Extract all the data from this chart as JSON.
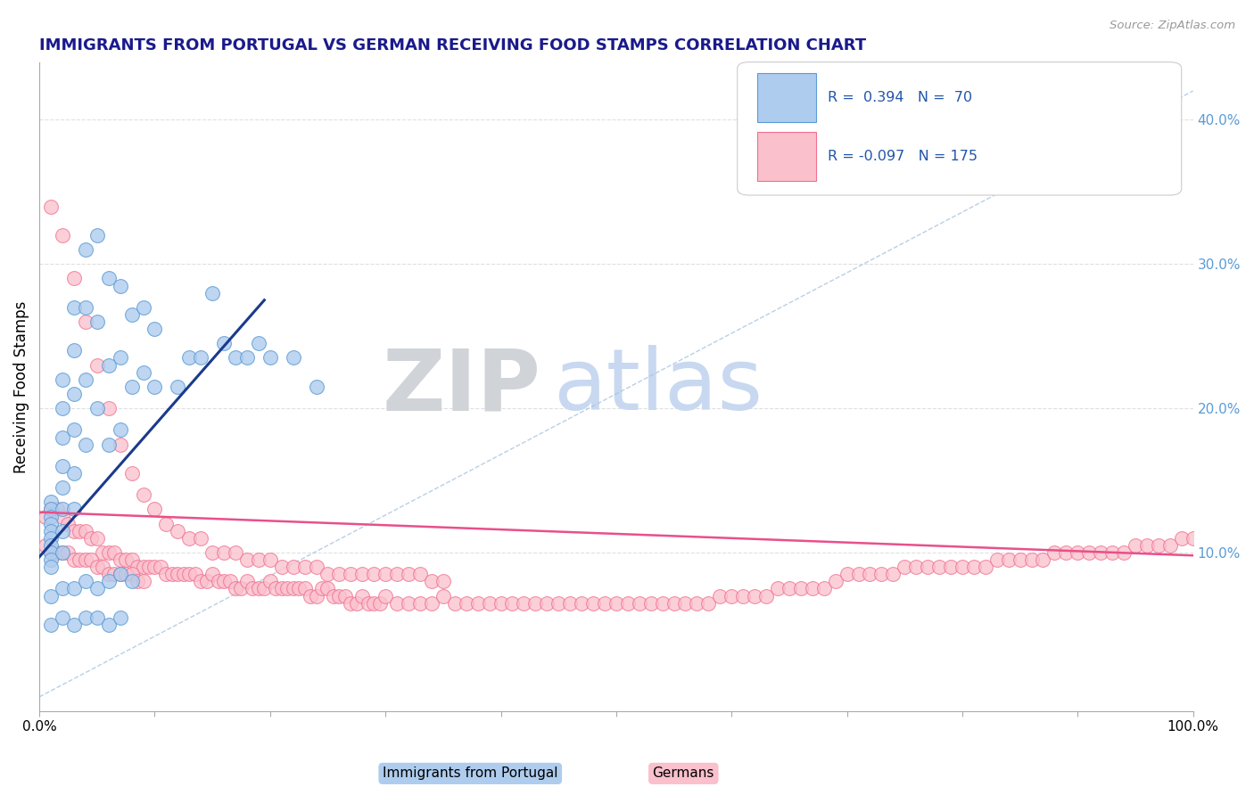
{
  "title": "IMMIGRANTS FROM PORTUGAL VS GERMAN RECEIVING FOOD STAMPS CORRELATION CHART",
  "source": "Source: ZipAtlas.com",
  "ylabel": "Receiving Food Stamps",
  "ylabel_right_ticks": [
    "10.0%",
    "20.0%",
    "30.0%",
    "40.0%"
  ],
  "ylabel_right_vals": [
    0.1,
    0.2,
    0.3,
    0.4
  ],
  "blue_r": "R =",
  "blue_r_val": "0.394",
  "blue_n": "N =",
  "blue_n_val": "70",
  "pink_r": "R =",
  "pink_r_val": "-0.097",
  "pink_n": "N =",
  "pink_n_val": "175",
  "blue_scatter_x": [
    0.01,
    0.01,
    0.01,
    0.01,
    0.01,
    0.01,
    0.01,
    0.01,
    0.01,
    0.01,
    0.02,
    0.02,
    0.02,
    0.02,
    0.02,
    0.02,
    0.02,
    0.02,
    0.03,
    0.03,
    0.03,
    0.03,
    0.03,
    0.03,
    0.04,
    0.04,
    0.04,
    0.04,
    0.05,
    0.05,
    0.05,
    0.06,
    0.06,
    0.06,
    0.07,
    0.07,
    0.07,
    0.08,
    0.08,
    0.09,
    0.09,
    0.1,
    0.1,
    0.12,
    0.13,
    0.14,
    0.15,
    0.16,
    0.17,
    0.18,
    0.19,
    0.2,
    0.22,
    0.24,
    0.01,
    0.02,
    0.03,
    0.04,
    0.05,
    0.06,
    0.07,
    0.08,
    0.01,
    0.02,
    0.03,
    0.04,
    0.05,
    0.06,
    0.07
  ],
  "blue_scatter_y": [
    0.135,
    0.13,
    0.125,
    0.12,
    0.115,
    0.11,
    0.105,
    0.1,
    0.095,
    0.09,
    0.22,
    0.2,
    0.18,
    0.16,
    0.145,
    0.13,
    0.115,
    0.1,
    0.27,
    0.24,
    0.21,
    0.185,
    0.155,
    0.13,
    0.31,
    0.27,
    0.22,
    0.175,
    0.32,
    0.26,
    0.2,
    0.29,
    0.23,
    0.175,
    0.285,
    0.235,
    0.185,
    0.265,
    0.215,
    0.27,
    0.225,
    0.255,
    0.215,
    0.215,
    0.235,
    0.235,
    0.28,
    0.245,
    0.235,
    0.235,
    0.245,
    0.235,
    0.235,
    0.215,
    0.07,
    0.075,
    0.075,
    0.08,
    0.075,
    0.08,
    0.085,
    0.08,
    0.05,
    0.055,
    0.05,
    0.055,
    0.055,
    0.05,
    0.055
  ],
  "pink_scatter_x": [
    0.005,
    0.01,
    0.015,
    0.02,
    0.025,
    0.03,
    0.035,
    0.04,
    0.045,
    0.05,
    0.055,
    0.06,
    0.065,
    0.07,
    0.075,
    0.08,
    0.085,
    0.09,
    0.095,
    0.1,
    0.105,
    0.11,
    0.115,
    0.12,
    0.125,
    0.13,
    0.135,
    0.14,
    0.145,
    0.15,
    0.155,
    0.16,
    0.165,
    0.17,
    0.175,
    0.18,
    0.185,
    0.19,
    0.195,
    0.2,
    0.205,
    0.21,
    0.215,
    0.22,
    0.225,
    0.23,
    0.235,
    0.24,
    0.245,
    0.25,
    0.255,
    0.26,
    0.265,
    0.27,
    0.275,
    0.28,
    0.285,
    0.29,
    0.295,
    0.3,
    0.31,
    0.32,
    0.33,
    0.34,
    0.35,
    0.36,
    0.37,
    0.38,
    0.39,
    0.4,
    0.41,
    0.42,
    0.43,
    0.44,
    0.45,
    0.46,
    0.47,
    0.48,
    0.49,
    0.5,
    0.51,
    0.52,
    0.53,
    0.54,
    0.55,
    0.56,
    0.57,
    0.58,
    0.59,
    0.6,
    0.61,
    0.62,
    0.63,
    0.64,
    0.65,
    0.66,
    0.67,
    0.68,
    0.69,
    0.7,
    0.71,
    0.72,
    0.73,
    0.74,
    0.75,
    0.76,
    0.77,
    0.78,
    0.79,
    0.8,
    0.81,
    0.82,
    0.83,
    0.84,
    0.85,
    0.86,
    0.87,
    0.88,
    0.89,
    0.9,
    0.91,
    0.92,
    0.93,
    0.94,
    0.95,
    0.96,
    0.97,
    0.98,
    0.99,
    1.0,
    0.01,
    0.02,
    0.03,
    0.04,
    0.05,
    0.06,
    0.07,
    0.08,
    0.09,
    0.1,
    0.11,
    0.12,
    0.13,
    0.14,
    0.15,
    0.16,
    0.17,
    0.18,
    0.19,
    0.2,
    0.21,
    0.22,
    0.23,
    0.24,
    0.25,
    0.26,
    0.27,
    0.28,
    0.29,
    0.3,
    0.31,
    0.32,
    0.33,
    0.34,
    0.35,
    0.005,
    0.01,
    0.015,
    0.02,
    0.025,
    0.03,
    0.035,
    0.04,
    0.045,
    0.05,
    0.055,
    0.06,
    0.065,
    0.07,
    0.075,
    0.08,
    0.085,
    0.09
  ],
  "pink_scatter_y": [
    0.125,
    0.13,
    0.13,
    0.125,
    0.12,
    0.115,
    0.115,
    0.115,
    0.11,
    0.11,
    0.1,
    0.1,
    0.1,
    0.095,
    0.095,
    0.095,
    0.09,
    0.09,
    0.09,
    0.09,
    0.09,
    0.085,
    0.085,
    0.085,
    0.085,
    0.085,
    0.085,
    0.08,
    0.08,
    0.085,
    0.08,
    0.08,
    0.08,
    0.075,
    0.075,
    0.08,
    0.075,
    0.075,
    0.075,
    0.08,
    0.075,
    0.075,
    0.075,
    0.075,
    0.075,
    0.075,
    0.07,
    0.07,
    0.075,
    0.075,
    0.07,
    0.07,
    0.07,
    0.065,
    0.065,
    0.07,
    0.065,
    0.065,
    0.065,
    0.07,
    0.065,
    0.065,
    0.065,
    0.065,
    0.07,
    0.065,
    0.065,
    0.065,
    0.065,
    0.065,
    0.065,
    0.065,
    0.065,
    0.065,
    0.065,
    0.065,
    0.065,
    0.065,
    0.065,
    0.065,
    0.065,
    0.065,
    0.065,
    0.065,
    0.065,
    0.065,
    0.065,
    0.065,
    0.07,
    0.07,
    0.07,
    0.07,
    0.07,
    0.075,
    0.075,
    0.075,
    0.075,
    0.075,
    0.08,
    0.085,
    0.085,
    0.085,
    0.085,
    0.085,
    0.09,
    0.09,
    0.09,
    0.09,
    0.09,
    0.09,
    0.09,
    0.09,
    0.095,
    0.095,
    0.095,
    0.095,
    0.095,
    0.1,
    0.1,
    0.1,
    0.1,
    0.1,
    0.1,
    0.1,
    0.105,
    0.105,
    0.105,
    0.105,
    0.11,
    0.11,
    0.34,
    0.32,
    0.29,
    0.26,
    0.23,
    0.2,
    0.175,
    0.155,
    0.14,
    0.13,
    0.12,
    0.115,
    0.11,
    0.11,
    0.1,
    0.1,
    0.1,
    0.095,
    0.095,
    0.095,
    0.09,
    0.09,
    0.09,
    0.09,
    0.085,
    0.085,
    0.085,
    0.085,
    0.085,
    0.085,
    0.085,
    0.085,
    0.085,
    0.08,
    0.08,
    0.105,
    0.1,
    0.1,
    0.1,
    0.1,
    0.095,
    0.095,
    0.095,
    0.095,
    0.09,
    0.09,
    0.085,
    0.085,
    0.085,
    0.085,
    0.085,
    0.08,
    0.08
  ],
  "blue_line_x": [
    0.0,
    0.195
  ],
  "blue_line_y": [
    0.097,
    0.275
  ],
  "pink_line_x": [
    0.0,
    1.0
  ],
  "pink_line_y": [
    0.128,
    0.098
  ],
  "diag_line_x": [
    0.0,
    1.0
  ],
  "diag_line_y": [
    0.0,
    0.42
  ],
  "xlim": [
    0.0,
    1.0
  ],
  "ylim": [
    -0.01,
    0.44
  ],
  "title_color": "#1a1a8c",
  "source_color": "#999999",
  "blue_marker_color": "#5b9bd5",
  "blue_fill_color": "#aeccee",
  "pink_marker_color": "#f07090",
  "pink_fill_color": "#fac0cc",
  "trend_blue_color": "#1a3a8c",
  "trend_pink_color": "#e8508a",
  "diag_color": "#a8c4e0",
  "watermark_zip_color": "#d0d4d8",
  "watermark_atlas_color": "#c8d8f0",
  "grid_color": "#dddddd",
  "legend_blue_fill": "#aeccee",
  "legend_blue_edge": "#5b9bd5",
  "legend_pink_fill": "#fac0cc",
  "legend_pink_edge": "#f07090",
  "legend_text_color": "#2255aa",
  "bottom_legend_blue_fill": "#aeccee",
  "bottom_legend_pink_fill": "#fac0cc"
}
